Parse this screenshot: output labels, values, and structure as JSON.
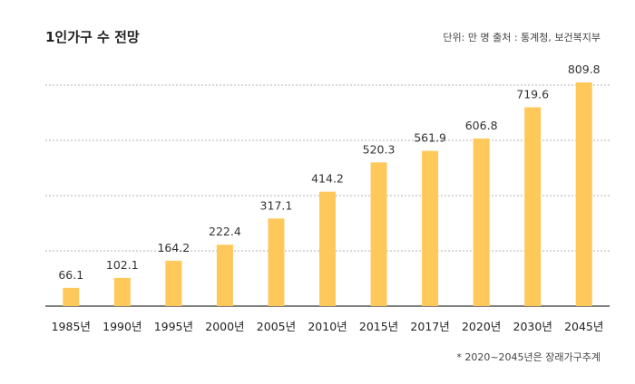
{
  "title": "1인가구 수 전망",
  "unit_source": "단위: 만 명  출처 : 통계청, 보건복지부",
  "footnote": "* 2020~2045년은 장래가구추계",
  "colors": {
    "bar": "#FFC85B",
    "grid": "#999999",
    "axis": "#333333"
  },
  "chart_data": {
    "type": "bar",
    "categories": [
      "1985년",
      "1990년",
      "1995년",
      "2000년",
      "2005년",
      "2010년",
      "2015년",
      "2017년",
      "2020년",
      "2030년",
      "2045년"
    ],
    "values": [
      66.1,
      102.1,
      164.2,
      222.4,
      317.1,
      414.2,
      520.3,
      561.9,
      606.8,
      719.6,
      809.8
    ],
    "value_labels": [
      "66.1",
      "102.1",
      "164.2",
      "222.4",
      "317.1",
      "414.2",
      "520.3",
      "561.9",
      "606.8",
      "719.6",
      "809.8"
    ],
    "ylim": [
      0,
      800
    ],
    "grid": true
  }
}
